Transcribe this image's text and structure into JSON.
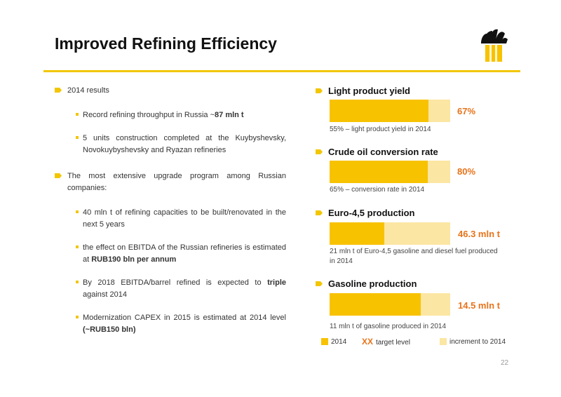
{
  "title": "Improved Refining Efficiency",
  "colors": {
    "accent": "#f2c600",
    "bar_2014": "#f7c200",
    "bar_increment": "#fbe6a3",
    "target_text": "#e8731a"
  },
  "left": {
    "b1": "2014 results",
    "b1_1_pre": "Record refining throughput in Russia ~",
    "b1_1_bold": "87 mln t",
    "b1_2": "5 units construction completed at the Kuybyshevsky, Novokuybyshevsky and Ryazan refineries",
    "b2": "The most extensive upgrade program among Russian companies:",
    "b2_1": "40 mln t of refining capacities to be built/renovated in the next 5 years",
    "b2_2_pre": "the effect on EBITDA of the Russian refineries is estimated at ",
    "b2_2_bold": "RUB190 bln per annum",
    "b2_3_pre": "By 2018 EBITDA/barrel refined is expected to ",
    "b2_3_bold": "triple",
    "b2_3_post": " against  2014",
    "b2_4_pre": "Modernization CAPEX in 2015 is estimated at 2014 level ",
    "b2_4_bold": "(~RUB150 bln)"
  },
  "metrics": [
    {
      "title": "Light product yield",
      "current": 55,
      "target": 67,
      "target_label": "67%",
      "caption": "55% – light product yield in 2014"
    },
    {
      "title": "Crude oil conversion rate",
      "current": 65,
      "target": 80,
      "target_label": "80%",
      "caption": "65% – conversion rate in 2014"
    },
    {
      "title": "Euro-4,5 production",
      "current": 21,
      "target": 46.3,
      "target_label": "46.3 mln t",
      "caption": "21 mln t of Euro-4,5 gasoline and diesel fuel produced in 2014"
    },
    {
      "title": "Gasoline production",
      "current": 11,
      "target": 14.5,
      "target_label": "14.5 mln t",
      "caption": "11 mln t of gasoline produced in 2014"
    }
  ],
  "legend": {
    "item_2014": "2014",
    "xx": "XX",
    "target_level": "target level",
    "increment": "increment to 2014"
  },
  "page_number": "22"
}
